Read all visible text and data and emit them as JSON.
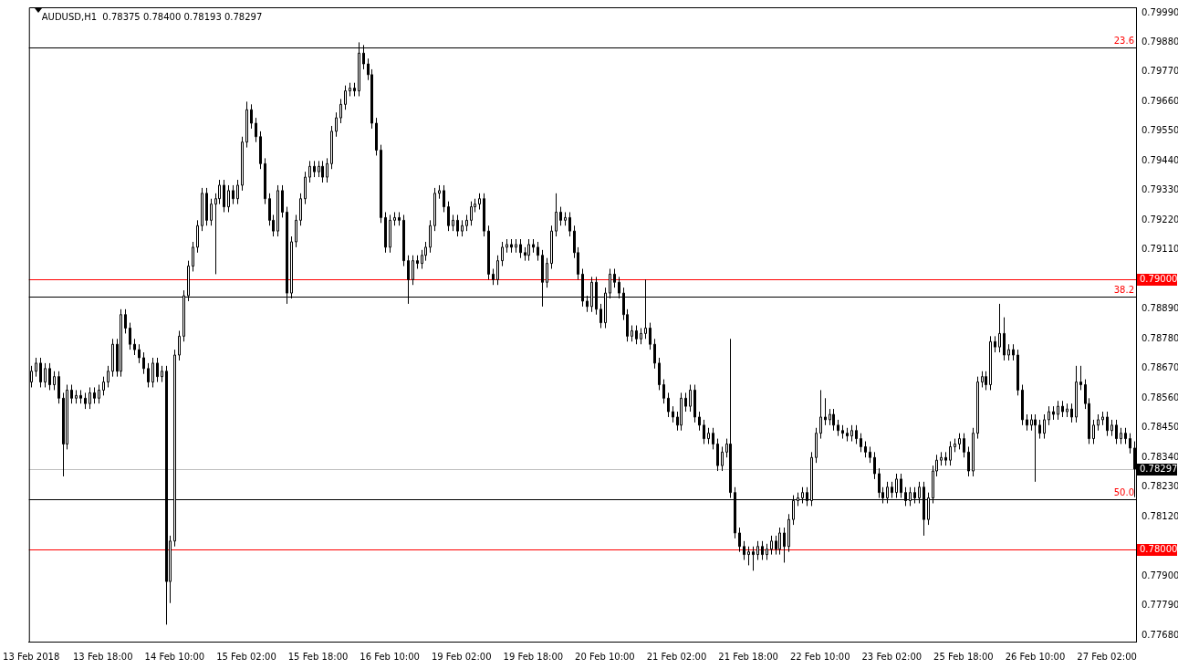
{
  "chart_data": {
    "type": "candlestick",
    "title": "AUDUSD,H1  0.78375 0.78400 0.78193 0.78297",
    "categories": [
      "13 Feb 2018",
      null,
      null,
      null,
      null,
      null,
      null,
      null,
      null,
      null,
      null,
      null,
      null,
      null,
      null,
      null,
      "13 Feb 18:00",
      null,
      null,
      null,
      null,
      null,
      null,
      null,
      null,
      null,
      null,
      null,
      null,
      null,
      null,
      null,
      "14 Feb 10:00",
      null,
      null,
      null,
      null,
      null,
      null,
      null,
      null,
      null,
      null,
      null,
      null,
      null,
      null,
      null,
      "15 Feb 02:00",
      null,
      null,
      null,
      null,
      null,
      null,
      null,
      null,
      null,
      null,
      null,
      null,
      null,
      null,
      null,
      "15 Feb 18:00",
      null,
      null,
      null,
      null,
      null,
      null,
      null,
      null,
      null,
      null,
      null,
      null,
      null,
      null,
      null,
      "16 Feb 10:00",
      null,
      null,
      null,
      null,
      null,
      null,
      null,
      null,
      null,
      null,
      null,
      null,
      null,
      null,
      null,
      "19 Feb 02:00",
      null,
      null,
      null,
      null,
      null,
      null,
      null,
      null,
      null,
      null,
      null,
      null,
      null,
      null,
      null,
      "19 Feb 18:00",
      null,
      null,
      null,
      null,
      null,
      null,
      null,
      null,
      null,
      null,
      null,
      null,
      null,
      null,
      null,
      "20 Feb 10:00",
      null,
      null,
      null,
      null,
      null,
      null,
      null,
      null,
      null,
      null,
      null,
      null,
      null,
      null,
      null,
      "21 Feb 02:00",
      null,
      null,
      null,
      null,
      null,
      null,
      null,
      null,
      null,
      null,
      null,
      null,
      null,
      null,
      null,
      "21 Feb 18:00",
      null,
      null,
      null,
      null,
      null,
      null,
      null,
      null,
      null,
      null,
      null,
      null,
      null,
      null,
      null,
      "22 Feb 10:00",
      null,
      null,
      null,
      null,
      null,
      null,
      null,
      null,
      null,
      null,
      null,
      null,
      null,
      null,
      null,
      "23 Feb 02:00",
      null,
      null,
      null,
      null,
      null,
      null,
      null,
      null,
      null,
      null,
      null,
      null,
      null,
      null,
      null,
      "25 Feb 18:00",
      null,
      null,
      null,
      null,
      null,
      null,
      null,
      null,
      null,
      null,
      null,
      null,
      null,
      null,
      null,
      "26 Feb 10:00",
      null,
      null,
      null,
      null,
      null,
      null,
      null,
      null,
      null,
      null,
      null,
      null,
      null,
      null,
      null,
      "27 Feb 02:00",
      null,
      null,
      null,
      null,
      null,
      null
    ],
    "ohlc": [
      [
        0.7862,
        0.7868,
        0.786,
        0.7866
      ],
      [
        0.7866,
        0.7871,
        0.7864,
        0.7869
      ],
      [
        0.7869,
        0.7871,
        0.786,
        0.7862
      ],
      [
        0.7862,
        0.7869,
        0.786,
        0.7867
      ],
      [
        0.7867,
        0.7869,
        0.7859,
        0.7861
      ],
      [
        0.7861,
        0.7866,
        0.7859,
        0.7864
      ],
      [
        0.7864,
        0.7866,
        0.7854,
        0.7856
      ],
      [
        0.7856,
        0.7858,
        0.7827,
        0.7839
      ],
      [
        0.7839,
        0.7861,
        0.7837,
        0.7859
      ],
      [
        0.7859,
        0.7861,
        0.7854,
        0.7856
      ],
      [
        0.7856,
        0.7859,
        0.7854,
        0.7857
      ],
      [
        0.7857,
        0.7859,
        0.7854,
        0.7856
      ],
      [
        0.7856,
        0.7858,
        0.7852,
        0.7854
      ],
      [
        0.7854,
        0.786,
        0.7852,
        0.7858
      ],
      [
        0.7858,
        0.786,
        0.7854,
        0.7856
      ],
      [
        0.7856,
        0.7861,
        0.7854,
        0.7859
      ],
      [
        0.7859,
        0.7864,
        0.7857,
        0.7862
      ],
      [
        0.7862,
        0.7868,
        0.786,
        0.7866
      ],
      [
        0.7866,
        0.7878,
        0.7864,
        0.7876
      ],
      [
        0.7876,
        0.7878,
        0.7864,
        0.7866
      ],
      [
        0.7866,
        0.7889,
        0.7864,
        0.7887
      ],
      [
        0.7887,
        0.7889,
        0.788,
        0.7882
      ],
      [
        0.7882,
        0.7884,
        0.7874,
        0.7876
      ],
      [
        0.7876,
        0.7878,
        0.7872,
        0.7874
      ],
      [
        0.7874,
        0.7876,
        0.7869,
        0.7871
      ],
      [
        0.7871,
        0.7873,
        0.7865,
        0.7867
      ],
      [
        0.7867,
        0.7869,
        0.786,
        0.7862
      ],
      [
        0.7862,
        0.7871,
        0.786,
        0.7869
      ],
      [
        0.7869,
        0.7871,
        0.7862,
        0.7864
      ],
      [
        0.7864,
        0.7868,
        0.7862,
        0.7866
      ],
      [
        0.7866,
        0.7868,
        0.7772,
        0.7788
      ],
      [
        0.7788,
        0.7805,
        0.778,
        0.7803
      ],
      [
        0.7803,
        0.7874,
        0.7801,
        0.7872
      ],
      [
        0.7872,
        0.7881,
        0.787,
        0.7879
      ],
      [
        0.7879,
        0.7896,
        0.7877,
        0.7894
      ],
      [
        0.7894,
        0.7907,
        0.7892,
        0.7905
      ],
      [
        0.7905,
        0.7914,
        0.7903,
        0.7912
      ],
      [
        0.7912,
        0.7922,
        0.791,
        0.792
      ],
      [
        0.792,
        0.7934,
        0.7918,
        0.7932
      ],
      [
        0.7932,
        0.7934,
        0.792,
        0.7922
      ],
      [
        0.7922,
        0.793,
        0.792,
        0.7928
      ],
      [
        0.7928,
        0.7932,
        0.7902,
        0.793
      ],
      [
        0.793,
        0.7937,
        0.7928,
        0.7935
      ],
      [
        0.7935,
        0.7937,
        0.7925,
        0.7927
      ],
      [
        0.7927,
        0.7935,
        0.7925,
        0.7933
      ],
      [
        0.7933,
        0.7935,
        0.7928,
        0.793
      ],
      [
        0.793,
        0.7937,
        0.7928,
        0.7935
      ],
      [
        0.7935,
        0.7953,
        0.7933,
        0.7951
      ],
      [
        0.7951,
        0.7966,
        0.7949,
        0.7963
      ],
      [
        0.7963,
        0.7965,
        0.7956,
        0.7958
      ],
      [
        0.7958,
        0.796,
        0.7951,
        0.7953
      ],
      [
        0.7953,
        0.7955,
        0.7941,
        0.7943
      ],
      [
        0.7943,
        0.7945,
        0.7928,
        0.793
      ],
      [
        0.793,
        0.7932,
        0.792,
        0.7922
      ],
      [
        0.7922,
        0.7924,
        0.7916,
        0.7918
      ],
      [
        0.7918,
        0.7935,
        0.7916,
        0.7933
      ],
      [
        0.7933,
        0.7935,
        0.7923,
        0.7925
      ],
      [
        0.7925,
        0.7927,
        0.7891,
        0.7895
      ],
      [
        0.7895,
        0.7916,
        0.7893,
        0.7914
      ],
      [
        0.7914,
        0.7924,
        0.7912,
        0.7922
      ],
      [
        0.7922,
        0.7932,
        0.792,
        0.793
      ],
      [
        0.793,
        0.794,
        0.7928,
        0.7938
      ],
      [
        0.7938,
        0.7944,
        0.7936,
        0.7942
      ],
      [
        0.7942,
        0.7944,
        0.7938,
        0.794
      ],
      [
        0.794,
        0.7944,
        0.7938,
        0.7942
      ],
      [
        0.7942,
        0.7944,
        0.7936,
        0.7938
      ],
      [
        0.7938,
        0.7945,
        0.7936,
        0.7943
      ],
      [
        0.7943,
        0.7957,
        0.7941,
        0.7955
      ],
      [
        0.7955,
        0.7962,
        0.7953,
        0.796
      ],
      [
        0.796,
        0.7967,
        0.7958,
        0.7965
      ],
      [
        0.7965,
        0.7972,
        0.7963,
        0.797
      ],
      [
        0.797,
        0.7973,
        0.7968,
        0.7971
      ],
      [
        0.7971,
        0.7973,
        0.7968,
        0.797
      ],
      [
        0.797,
        0.7988,
        0.7968,
        0.7984
      ],
      [
        0.7984,
        0.7987,
        0.7978,
        0.798
      ],
      [
        0.798,
        0.7982,
        0.7974,
        0.7976
      ],
      [
        0.7976,
        0.7978,
        0.7956,
        0.7958
      ],
      [
        0.7958,
        0.796,
        0.7946,
        0.7948
      ],
      [
        0.7948,
        0.795,
        0.7921,
        0.7923
      ],
      [
        0.7923,
        0.7925,
        0.791,
        0.7912
      ],
      [
        0.7912,
        0.7924,
        0.791,
        0.7922
      ],
      [
        0.7922,
        0.7925,
        0.792,
        0.7923
      ],
      [
        0.7923,
        0.7925,
        0.792,
        0.7922
      ],
      [
        0.7922,
        0.7924,
        0.7905,
        0.7907
      ],
      [
        0.7907,
        0.7909,
        0.7891,
        0.79
      ],
      [
        0.79,
        0.7909,
        0.7898,
        0.7907
      ],
      [
        0.7907,
        0.7909,
        0.7904,
        0.7906
      ],
      [
        0.7906,
        0.7911,
        0.7904,
        0.7909
      ],
      [
        0.7909,
        0.7914,
        0.7907,
        0.7912
      ],
      [
        0.7912,
        0.7922,
        0.791,
        0.792
      ],
      [
        0.792,
        0.7934,
        0.7918,
        0.7932
      ],
      [
        0.7932,
        0.7935,
        0.793,
        0.7933
      ],
      [
        0.7933,
        0.7935,
        0.7925,
        0.7927
      ],
      [
        0.7927,
        0.7929,
        0.7918,
        0.792
      ],
      [
        0.792,
        0.7924,
        0.7918,
        0.7922
      ],
      [
        0.7922,
        0.7924,
        0.7916,
        0.7918
      ],
      [
        0.7918,
        0.7922,
        0.7916,
        0.792
      ],
      [
        0.792,
        0.7924,
        0.7918,
        0.7922
      ],
      [
        0.7922,
        0.7929,
        0.792,
        0.7927
      ],
      [
        0.7927,
        0.793,
        0.7925,
        0.7928
      ],
      [
        0.7928,
        0.7932,
        0.7926,
        0.793
      ],
      [
        0.793,
        0.7932,
        0.7916,
        0.7918
      ],
      [
        0.7918,
        0.792,
        0.79,
        0.7902
      ],
      [
        0.7902,
        0.7904,
        0.7898,
        0.79
      ],
      [
        0.79,
        0.7909,
        0.7898,
        0.7907
      ],
      [
        0.7907,
        0.7914,
        0.7905,
        0.7912
      ],
      [
        0.7912,
        0.7915,
        0.791,
        0.7913
      ],
      [
        0.7913,
        0.7915,
        0.791,
        0.7912
      ],
      [
        0.7912,
        0.7915,
        0.791,
        0.7913
      ],
      [
        0.7913,
        0.7915,
        0.7908,
        0.791
      ],
      [
        0.791,
        0.7912,
        0.7907,
        0.7909
      ],
      [
        0.7909,
        0.7915,
        0.7907,
        0.7913
      ],
      [
        0.7913,
        0.7915,
        0.791,
        0.7912
      ],
      [
        0.7912,
        0.7914,
        0.7907,
        0.7909
      ],
      [
        0.7909,
        0.7911,
        0.789,
        0.7899
      ],
      [
        0.7899,
        0.7908,
        0.7897,
        0.7906
      ],
      [
        0.7906,
        0.792,
        0.7904,
        0.7918
      ],
      [
        0.7918,
        0.7932,
        0.7916,
        0.7925
      ],
      [
        0.7925,
        0.7927,
        0.792,
        0.7922
      ],
      [
        0.7922,
        0.7925,
        0.792,
        0.7923
      ],
      [
        0.7923,
        0.7925,
        0.7916,
        0.7918
      ],
      [
        0.7918,
        0.792,
        0.7908,
        0.791
      ],
      [
        0.791,
        0.7912,
        0.79,
        0.7902
      ],
      [
        0.7902,
        0.7904,
        0.789,
        0.7892
      ],
      [
        0.7892,
        0.7894,
        0.7888,
        0.789
      ],
      [
        0.789,
        0.7901,
        0.7888,
        0.7899
      ],
      [
        0.7899,
        0.7901,
        0.7887,
        0.7889
      ],
      [
        0.7889,
        0.7891,
        0.7882,
        0.7884
      ],
      [
        0.7884,
        0.7897,
        0.7882,
        0.7895
      ],
      [
        0.7895,
        0.7904,
        0.7893,
        0.7902
      ],
      [
        0.7902,
        0.7904,
        0.7897,
        0.7899
      ],
      [
        0.7899,
        0.7901,
        0.7893,
        0.7895
      ],
      [
        0.7895,
        0.7897,
        0.7885,
        0.7887
      ],
      [
        0.7887,
        0.7889,
        0.7877,
        0.7879
      ],
      [
        0.7879,
        0.7883,
        0.7877,
        0.7881
      ],
      [
        0.7881,
        0.7883,
        0.7876,
        0.7878
      ],
      [
        0.7878,
        0.7882,
        0.7876,
        0.788
      ],
      [
        0.788,
        0.79,
        0.7878,
        0.7882
      ],
      [
        0.7882,
        0.7884,
        0.7874,
        0.7876
      ],
      [
        0.7876,
        0.7878,
        0.7867,
        0.7869
      ],
      [
        0.7869,
        0.7871,
        0.7859,
        0.7861
      ],
      [
        0.7861,
        0.7863,
        0.7854,
        0.7856
      ],
      [
        0.7856,
        0.7858,
        0.7849,
        0.7851
      ],
      [
        0.7851,
        0.7853,
        0.7847,
        0.7849
      ],
      [
        0.7849,
        0.7851,
        0.7844,
        0.7846
      ],
      [
        0.7846,
        0.7858,
        0.7844,
        0.7856
      ],
      [
        0.7856,
        0.7858,
        0.7851,
        0.7853
      ],
      [
        0.7853,
        0.7861,
        0.7851,
        0.7859
      ],
      [
        0.7859,
        0.7861,
        0.7847,
        0.7849
      ],
      [
        0.7849,
        0.7851,
        0.7844,
        0.7846
      ],
      [
        0.7846,
        0.7848,
        0.7839,
        0.7841
      ],
      [
        0.7841,
        0.7845,
        0.7839,
        0.7843
      ],
      [
        0.7843,
        0.7845,
        0.7837,
        0.7839
      ],
      [
        0.7839,
        0.7841,
        0.7829,
        0.7831
      ],
      [
        0.7831,
        0.7838,
        0.7829,
        0.7836
      ],
      [
        0.7836,
        0.7841,
        0.7834,
        0.7839
      ],
      [
        0.7839,
        0.7878,
        0.7819,
        0.7821
      ],
      [
        0.7821,
        0.7823,
        0.7804,
        0.7806
      ],
      [
        0.7806,
        0.7808,
        0.7799,
        0.7801
      ],
      [
        0.7801,
        0.7803,
        0.7796,
        0.7798
      ],
      [
        0.7798,
        0.7801,
        0.7794,
        0.7799
      ],
      [
        0.7799,
        0.7801,
        0.7792,
        0.7798
      ],
      [
        0.7798,
        0.7803,
        0.7796,
        0.7801
      ],
      [
        0.7801,
        0.7803,
        0.7796,
        0.7798
      ],
      [
        0.7798,
        0.7802,
        0.7796,
        0.78
      ],
      [
        0.78,
        0.7805,
        0.7798,
        0.7803
      ],
      [
        0.7803,
        0.7805,
        0.7798,
        0.78
      ],
      [
        0.78,
        0.7808,
        0.7798,
        0.7806
      ],
      [
        0.7806,
        0.7808,
        0.7795,
        0.7801
      ],
      [
        0.7801,
        0.7813,
        0.7799,
        0.7811
      ],
      [
        0.7811,
        0.782,
        0.7809,
        0.7818
      ],
      [
        0.7818,
        0.7821,
        0.7816,
        0.7819
      ],
      [
        0.7819,
        0.7823,
        0.7817,
        0.7821
      ],
      [
        0.7821,
        0.7823,
        0.7816,
        0.7818
      ],
      [
        0.7818,
        0.7836,
        0.7816,
        0.7834
      ],
      [
        0.7834,
        0.7845,
        0.7832,
        0.7843
      ],
      [
        0.7843,
        0.7859,
        0.7841,
        0.7849
      ],
      [
        0.7849,
        0.7856,
        0.7846,
        0.7848
      ],
      [
        0.7848,
        0.7852,
        0.7846,
        0.785
      ],
      [
        0.785,
        0.7852,
        0.7844,
        0.7846
      ],
      [
        0.7846,
        0.7848,
        0.7842,
        0.7844
      ],
      [
        0.7844,
        0.7846,
        0.7841,
        0.7843
      ],
      [
        0.7843,
        0.7845,
        0.784,
        0.7842
      ],
      [
        0.7842,
        0.7846,
        0.784,
        0.7844
      ],
      [
        0.7844,
        0.7846,
        0.7839,
        0.7841
      ],
      [
        0.7841,
        0.7843,
        0.7836,
        0.7838
      ],
      [
        0.7838,
        0.784,
        0.7834,
        0.7836
      ],
      [
        0.7836,
        0.7838,
        0.7832,
        0.7834
      ],
      [
        0.7834,
        0.7836,
        0.7826,
        0.7828
      ],
      [
        0.7828,
        0.783,
        0.7819,
        0.7821
      ],
      [
        0.7821,
        0.7823,
        0.7817,
        0.7819
      ],
      [
        0.7819,
        0.7825,
        0.7817,
        0.7823
      ],
      [
        0.7823,
        0.7825,
        0.7819,
        0.7821
      ],
      [
        0.7821,
        0.7828,
        0.7819,
        0.7826
      ],
      [
        0.7826,
        0.7828,
        0.7819,
        0.7821
      ],
      [
        0.7821,
        0.7823,
        0.7816,
        0.7818
      ],
      [
        0.7818,
        0.7823,
        0.7816,
        0.7821
      ],
      [
        0.7821,
        0.7823,
        0.7817,
        0.7819
      ],
      [
        0.7819,
        0.7825,
        0.7817,
        0.7823
      ],
      [
        0.7823,
        0.7825,
        0.7805,
        0.7811
      ],
      [
        0.7811,
        0.7821,
        0.7809,
        0.7819
      ],
      [
        0.7819,
        0.7831,
        0.7817,
        0.7829
      ],
      [
        0.7829,
        0.7835,
        0.7827,
        0.7833
      ],
      [
        0.7833,
        0.7836,
        0.7831,
        0.7834
      ],
      [
        0.7834,
        0.7836,
        0.7831,
        0.7833
      ],
      [
        0.7833,
        0.784,
        0.7831,
        0.7838
      ],
      [
        0.7838,
        0.7841,
        0.7836,
        0.7839
      ],
      [
        0.7839,
        0.7843,
        0.7837,
        0.7841
      ],
      [
        0.7841,
        0.7843,
        0.7834,
        0.7836
      ],
      [
        0.7836,
        0.7838,
        0.7827,
        0.7829
      ],
      [
        0.7829,
        0.7845,
        0.7827,
        0.7843
      ],
      [
        0.7843,
        0.7864,
        0.7841,
        0.7862
      ],
      [
        0.7862,
        0.7866,
        0.786,
        0.7864
      ],
      [
        0.7864,
        0.7866,
        0.7859,
        0.7861
      ],
      [
        0.7861,
        0.7879,
        0.7859,
        0.7877
      ],
      [
        0.7877,
        0.7879,
        0.7873,
        0.7875
      ],
      [
        0.7875,
        0.7891,
        0.7873,
        0.788
      ],
      [
        0.788,
        0.7886,
        0.787,
        0.7872
      ],
      [
        0.7872,
        0.7876,
        0.787,
        0.7874
      ],
      [
        0.7874,
        0.7876,
        0.787,
        0.7872
      ],
      [
        0.7872,
        0.7874,
        0.7857,
        0.7859
      ],
      [
        0.7859,
        0.7861,
        0.7846,
        0.7848
      ],
      [
        0.7848,
        0.785,
        0.7844,
        0.7846
      ],
      [
        0.7846,
        0.785,
        0.7844,
        0.7848
      ],
      [
        0.7848,
        0.785,
        0.7825,
        0.7846
      ],
      [
        0.7846,
        0.7848,
        0.7841,
        0.7843
      ],
      [
        0.7843,
        0.785,
        0.7841,
        0.7848
      ],
      [
        0.7848,
        0.7853,
        0.7846,
        0.7851
      ],
      [
        0.7851,
        0.7853,
        0.7848,
        0.785
      ],
      [
        0.785,
        0.7855,
        0.7848,
        0.7853
      ],
      [
        0.7853,
        0.7855,
        0.7849,
        0.7851
      ],
      [
        0.7851,
        0.7854,
        0.7849,
        0.7852
      ],
      [
        0.7852,
        0.7854,
        0.7847,
        0.7849
      ],
      [
        0.7849,
        0.7868,
        0.7847,
        0.7862
      ],
      [
        0.7862,
        0.7868,
        0.7859,
        0.7861
      ],
      [
        0.7861,
        0.7863,
        0.7852,
        0.7854
      ],
      [
        0.7854,
        0.7856,
        0.7839,
        0.7841
      ],
      [
        0.7841,
        0.7848,
        0.7839,
        0.7846
      ],
      [
        0.7846,
        0.785,
        0.7844,
        0.7848
      ],
      [
        0.7848,
        0.7851,
        0.7846,
        0.7849
      ],
      [
        0.7849,
        0.7851,
        0.7842,
        0.7844
      ],
      [
        0.7844,
        0.7848,
        0.7842,
        0.7846
      ],
      [
        0.7846,
        0.7848,
        0.7839,
        0.7841
      ],
      [
        0.7841,
        0.7845,
        0.7839,
        0.7843
      ],
      [
        0.7843,
        0.7845,
        0.7839,
        0.7841
      ],
      [
        0.7841,
        0.7843,
        0.78355,
        0.78375
      ],
      [
        0.78375,
        0.784,
        0.78193,
        0.78297
      ]
    ],
    "ylim": [
      0.77657,
      0.8001
    ],
    "yticks": [
      {
        "value": 0.7999,
        "label": "0.79990"
      },
      {
        "value": 0.7988,
        "label": "0.79880"
      },
      {
        "value": 0.7977,
        "label": "0.79770"
      },
      {
        "value": 0.7966,
        "label": "0.79660"
      },
      {
        "value": 0.7955,
        "label": "0.79550"
      },
      {
        "value": 0.7944,
        "label": "0.79440"
      },
      {
        "value": 0.7933,
        "label": "0.79330"
      },
      {
        "value": 0.7922,
        "label": "0.79220"
      },
      {
        "value": 0.7911,
        "label": "0.79110"
      },
      {
        "value": 0.7889,
        "label": "0.78890"
      },
      {
        "value": 0.7878,
        "label": "0.78780"
      },
      {
        "value": 0.7867,
        "label": "0.78670"
      },
      {
        "value": 0.7856,
        "label": "0.78560"
      },
      {
        "value": 0.7845,
        "label": "0.78450"
      },
      {
        "value": 0.7834,
        "label": "0.78340"
      },
      {
        "value": 0.7823,
        "label": "0.78230"
      },
      {
        "value": 0.7812,
        "label": "0.78120"
      },
      {
        "value": 0.779,
        "label": "0.77900"
      },
      {
        "value": 0.7779,
        "label": "0.77790"
      },
      {
        "value": 0.7768,
        "label": "0.77680"
      }
    ],
    "ref_lines": [
      {
        "axis": "y",
        "value": 0.79861,
        "color": "#000000"
      },
      {
        "axis": "y",
        "value": 0.78937,
        "color": "#000000"
      },
      {
        "axis": "y",
        "value": 0.78185,
        "color": "#000000"
      },
      {
        "axis": "y",
        "value": 0.79,
        "label": "0.79000",
        "color": "#ff0000"
      },
      {
        "axis": "y",
        "value": 0.78,
        "label": "0.78000",
        "color": "#ff0000"
      },
      {
        "axis": "y",
        "value": 0.78297,
        "label": "0.78297",
        "color": "#c0c0c0"
      }
    ],
    "annotations": [
      {
        "text": "23.6",
        "y": 0.79861
      },
      {
        "text": "38.2",
        "y": 0.78937
      },
      {
        "text": "50.0",
        "y": 0.78185
      }
    ],
    "grid": false,
    "legend": false
  }
}
